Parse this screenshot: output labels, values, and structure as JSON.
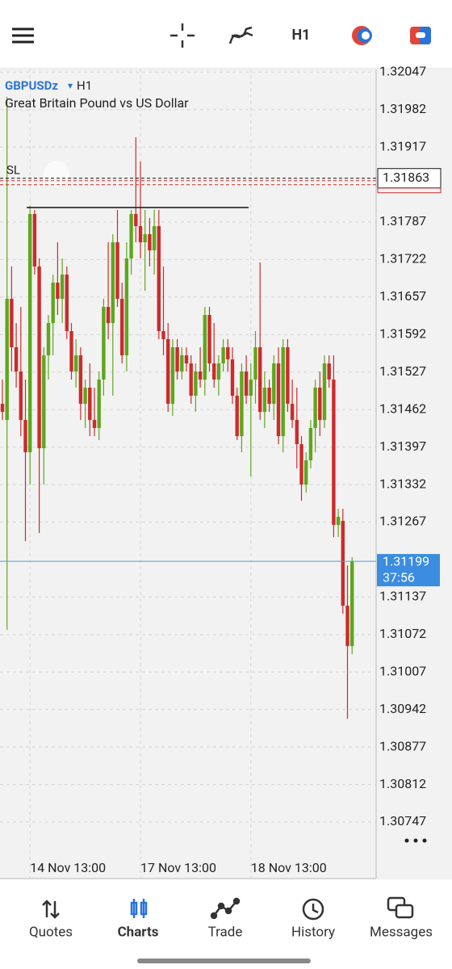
{
  "toolbar": {
    "timeframe": "H1"
  },
  "chart_data": {
    "type": "candlestick",
    "symbol": "GBPUSDz",
    "timeframe": "H1",
    "description": "Great Britain Pound vs US Dollar",
    "sl_label": "SL",
    "sl_price": 1.31863,
    "bid": 1.31199,
    "bar_timer": "37:56",
    "up_color": "#5ea61d",
    "down_color": "#cc2b2b",
    "grid": true,
    "ylim": [
      1.30649,
      1.32053
    ],
    "yticks": [
      1.32047,
      1.31982,
      1.31917,
      1.31787,
      1.31722,
      1.31657,
      1.31592,
      1.31527,
      1.31462,
      1.31397,
      1.31332,
      1.31267,
      1.31137,
      1.31072,
      1.31007,
      1.30942,
      1.30877,
      1.30812,
      1.30747
    ],
    "categories": [
      null,
      null,
      null,
      null,
      null,
      null,
      "14 Nov 13:00",
      null,
      null,
      null,
      null,
      null,
      null,
      null,
      null,
      null,
      null,
      null,
      null,
      null,
      null,
      null,
      null,
      null,
      null,
      null,
      null,
      null,
      null,
      null,
      "17 Nov 13:00",
      null,
      null,
      null,
      null,
      null,
      null,
      null,
      null,
      null,
      null,
      null,
      null,
      null,
      null,
      null,
      null,
      null,
      null,
      null,
      null,
      null,
      null,
      null,
      "18 Nov 13:00",
      null,
      null,
      null,
      null,
      null,
      null,
      null,
      null,
      null,
      null,
      null,
      null,
      null,
      null,
      null,
      null,
      null,
      null,
      null,
      null,
      null,
      null
    ],
    "open": [
      1.31472,
      1.31444,
      1.31654,
      1.3157,
      1.31528,
      1.31444,
      1.31388,
      1.31801,
      1.3171,
      1.31395,
      1.31556,
      1.31612,
      1.31682,
      1.31654,
      1.31696,
      1.31598,
      1.31528,
      1.31556,
      1.31472,
      1.315,
      1.31444,
      1.3143,
      1.31514,
      1.3164,
      1.31612,
      1.31752,
      1.31654,
      1.31556,
      1.31724,
      1.31801,
      1.3178,
      1.31752,
      1.31766,
      1.31738,
      1.3178,
      1.31598,
      1.31584,
      1.31472,
      1.3157,
      1.31528,
      1.31556,
      1.31542,
      1.31486,
      1.31528,
      1.31514,
      1.31626,
      1.31542,
      1.31514,
      1.31542,
      1.3157,
      1.31549,
      1.31486,
      1.31416,
      1.31528,
      1.31486,
      1.31514,
      1.3157,
      1.31458,
      1.315,
      1.31472,
      1.31542,
      1.31416,
      1.3157,
      1.31472,
      1.31444,
      1.31402,
      1.31332,
      1.31374,
      1.3143,
      1.315,
      1.31444,
      1.31542,
      1.31514,
      1.31262,
      1.31269,
      1.31122,
      1.31052
    ],
    "high": [
      1.31514,
      1.32004,
      1.3171,
      1.31612,
      1.3164,
      1.31514,
      1.31815,
      1.31808,
      1.31724,
      1.3157,
      1.31626,
      1.31696,
      1.31752,
      1.31724,
      1.3171,
      1.31612,
      1.31584,
      1.3157,
      1.31514,
      1.31542,
      1.315,
      1.31528,
      1.31654,
      1.31752,
      1.31766,
      1.31808,
      1.31682,
      1.31752,
      1.31808,
      1.31934,
      1.31892,
      1.31808,
      1.31794,
      1.31808,
      1.31808,
      1.3171,
      1.31612,
      1.31584,
      1.31584,
      1.3157,
      1.3157,
      1.31556,
      1.31542,
      1.3157,
      1.3164,
      1.3164,
      1.31612,
      1.31556,
      1.31584,
      1.31584,
      1.3157,
      1.315,
      1.31542,
      1.31556,
      1.31542,
      1.31598,
      1.31717,
      1.31528,
      1.31514,
      1.31556,
      1.3157,
      1.31584,
      1.31584,
      1.31514,
      1.315,
      1.31416,
      1.31388,
      1.31444,
      1.31514,
      1.31528,
      1.31556,
      1.31556,
      1.31556,
      1.3129,
      1.3129,
      1.31192,
      1.31206
    ],
    "low": [
      1.31444,
      1.3108,
      1.31528,
      1.315,
      1.31416,
      1.31234,
      1.31332,
      1.31696,
      1.31248,
      1.31332,
      1.31514,
      1.31556,
      1.31626,
      1.31612,
      1.31584,
      1.31514,
      1.315,
      1.31444,
      1.3143,
      1.31416,
      1.31416,
      1.31409,
      1.31486,
      1.31584,
      1.31486,
      1.3164,
      1.31542,
      1.31528,
      1.31696,
      1.31752,
      1.31724,
      1.31668,
      1.3171,
      1.31696,
      1.31584,
      1.31556,
      1.31458,
      1.31451,
      1.31514,
      1.31514,
      1.31528,
      1.31472,
      1.31458,
      1.315,
      1.31486,
      1.31528,
      1.315,
      1.31486,
      1.31528,
      1.31528,
      1.31472,
      1.31409,
      1.31388,
      1.31472,
      1.31346,
      1.31472,
      1.31444,
      1.3143,
      1.31458,
      1.31444,
      1.31402,
      1.31388,
      1.31458,
      1.3143,
      1.3136,
      1.31304,
      1.31318,
      1.3136,
      1.31388,
      1.31416,
      1.3143,
      1.315,
      1.31241,
      1.31241,
      1.31108,
      1.30926,
      1.31038
    ],
    "close": [
      1.31458,
      1.31654,
      1.3157,
      1.31528,
      1.31444,
      1.31388,
      1.31801,
      1.3171,
      1.31395,
      1.31556,
      1.31612,
      1.31682,
      1.31654,
      1.31696,
      1.31598,
      1.31528,
      1.31556,
      1.31472,
      1.315,
      1.31444,
      1.3143,
      1.31514,
      1.3164,
      1.31612,
      1.31752,
      1.31654,
      1.31556,
      1.31724,
      1.31801,
      1.3178,
      1.31752,
      1.31766,
      1.31738,
      1.3178,
      1.31598,
      1.31584,
      1.31472,
      1.3157,
      1.31528,
      1.31556,
      1.31542,
      1.31486,
      1.31528,
      1.31514,
      1.31626,
      1.31542,
      1.31514,
      1.31542,
      1.3157,
      1.31549,
      1.31486,
      1.31416,
      1.31528,
      1.31486,
      1.31514,
      1.3157,
      1.31458,
      1.315,
      1.31472,
      1.31542,
      1.31416,
      1.3157,
      1.31472,
      1.31444,
      1.31402,
      1.31332,
      1.31374,
      1.3143,
      1.315,
      1.31444,
      1.31542,
      1.31514,
      1.31262,
      1.31276,
      1.31122,
      1.31052,
      1.31199
    ]
  },
  "nav": {
    "items": [
      "Quotes",
      "Charts",
      "Trade",
      "History",
      "Messages"
    ],
    "active": 1
  }
}
